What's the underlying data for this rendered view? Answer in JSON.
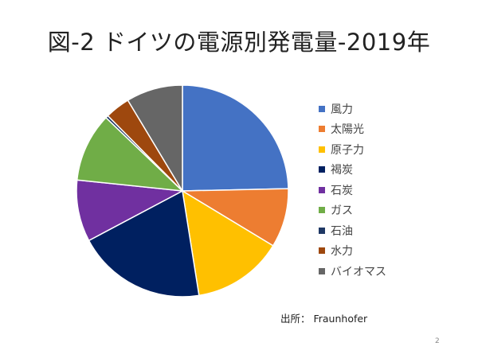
{
  "title": "図-2 ドイツの電源別発電量-2019年",
  "source": "出所： Fraunhofer",
  "page_number": "2",
  "chart_data": {
    "type": "pie",
    "categories": [
      "風力",
      "太陽光",
      "原子力",
      "褐炭",
      "石炭",
      "ガス",
      "石油",
      "水力",
      "バイオマス"
    ],
    "values": [
      24.6,
      9.0,
      13.8,
      19.7,
      9.4,
      10.5,
      0.4,
      3.8,
      8.6
    ],
    "colors": [
      "#4472C4",
      "#ED7D31",
      "#FFC000",
      "#002060",
      "#7030A0",
      "#70AD47",
      "#1F3864",
      "#9E480E",
      "#666666"
    ],
    "start_angle_deg": 0,
    "direction": "clockwise",
    "legend_position": "right"
  }
}
